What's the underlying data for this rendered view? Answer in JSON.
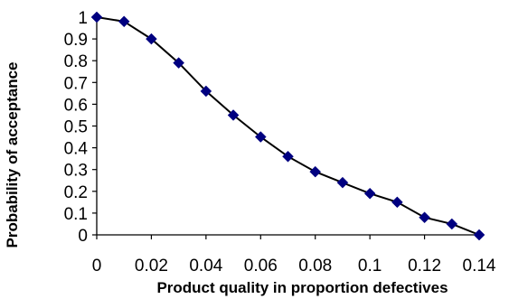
{
  "chart_data": {
    "type": "line",
    "xlabel": "Product quality in proportion defectives",
    "ylabel": "Probability of acceptance",
    "xlim": [
      0,
      0.14
    ],
    "ylim": [
      0,
      1
    ],
    "x_ticks": [
      "0",
      "0.02",
      "0.04",
      "0.06",
      "0.08",
      "0.1",
      "0.12",
      "0.14"
    ],
    "y_ticks": [
      "0",
      "0.1",
      "0.2",
      "0.3",
      "0.4",
      "0.5",
      "0.6",
      "0.7",
      "0.8",
      "0.9",
      "1"
    ],
    "grid": false,
    "legend": "none",
    "series": [
      {
        "x": [
          0,
          0.01,
          0.02,
          0.03,
          0.04,
          0.05,
          0.06,
          0.07,
          0.08,
          0.09,
          0.1,
          0.11,
          0.12,
          0.13,
          0.14
        ],
        "y": [
          1.0,
          0.98,
          0.9,
          0.79,
          0.66,
          0.55,
          0.45,
          0.36,
          0.29,
          0.24,
          0.19,
          0.15,
          0.08,
          0.05,
          0.0
        ],
        "line_color": "#000000",
        "marker": "diamond",
        "marker_color": "#000080"
      }
    ]
  }
}
